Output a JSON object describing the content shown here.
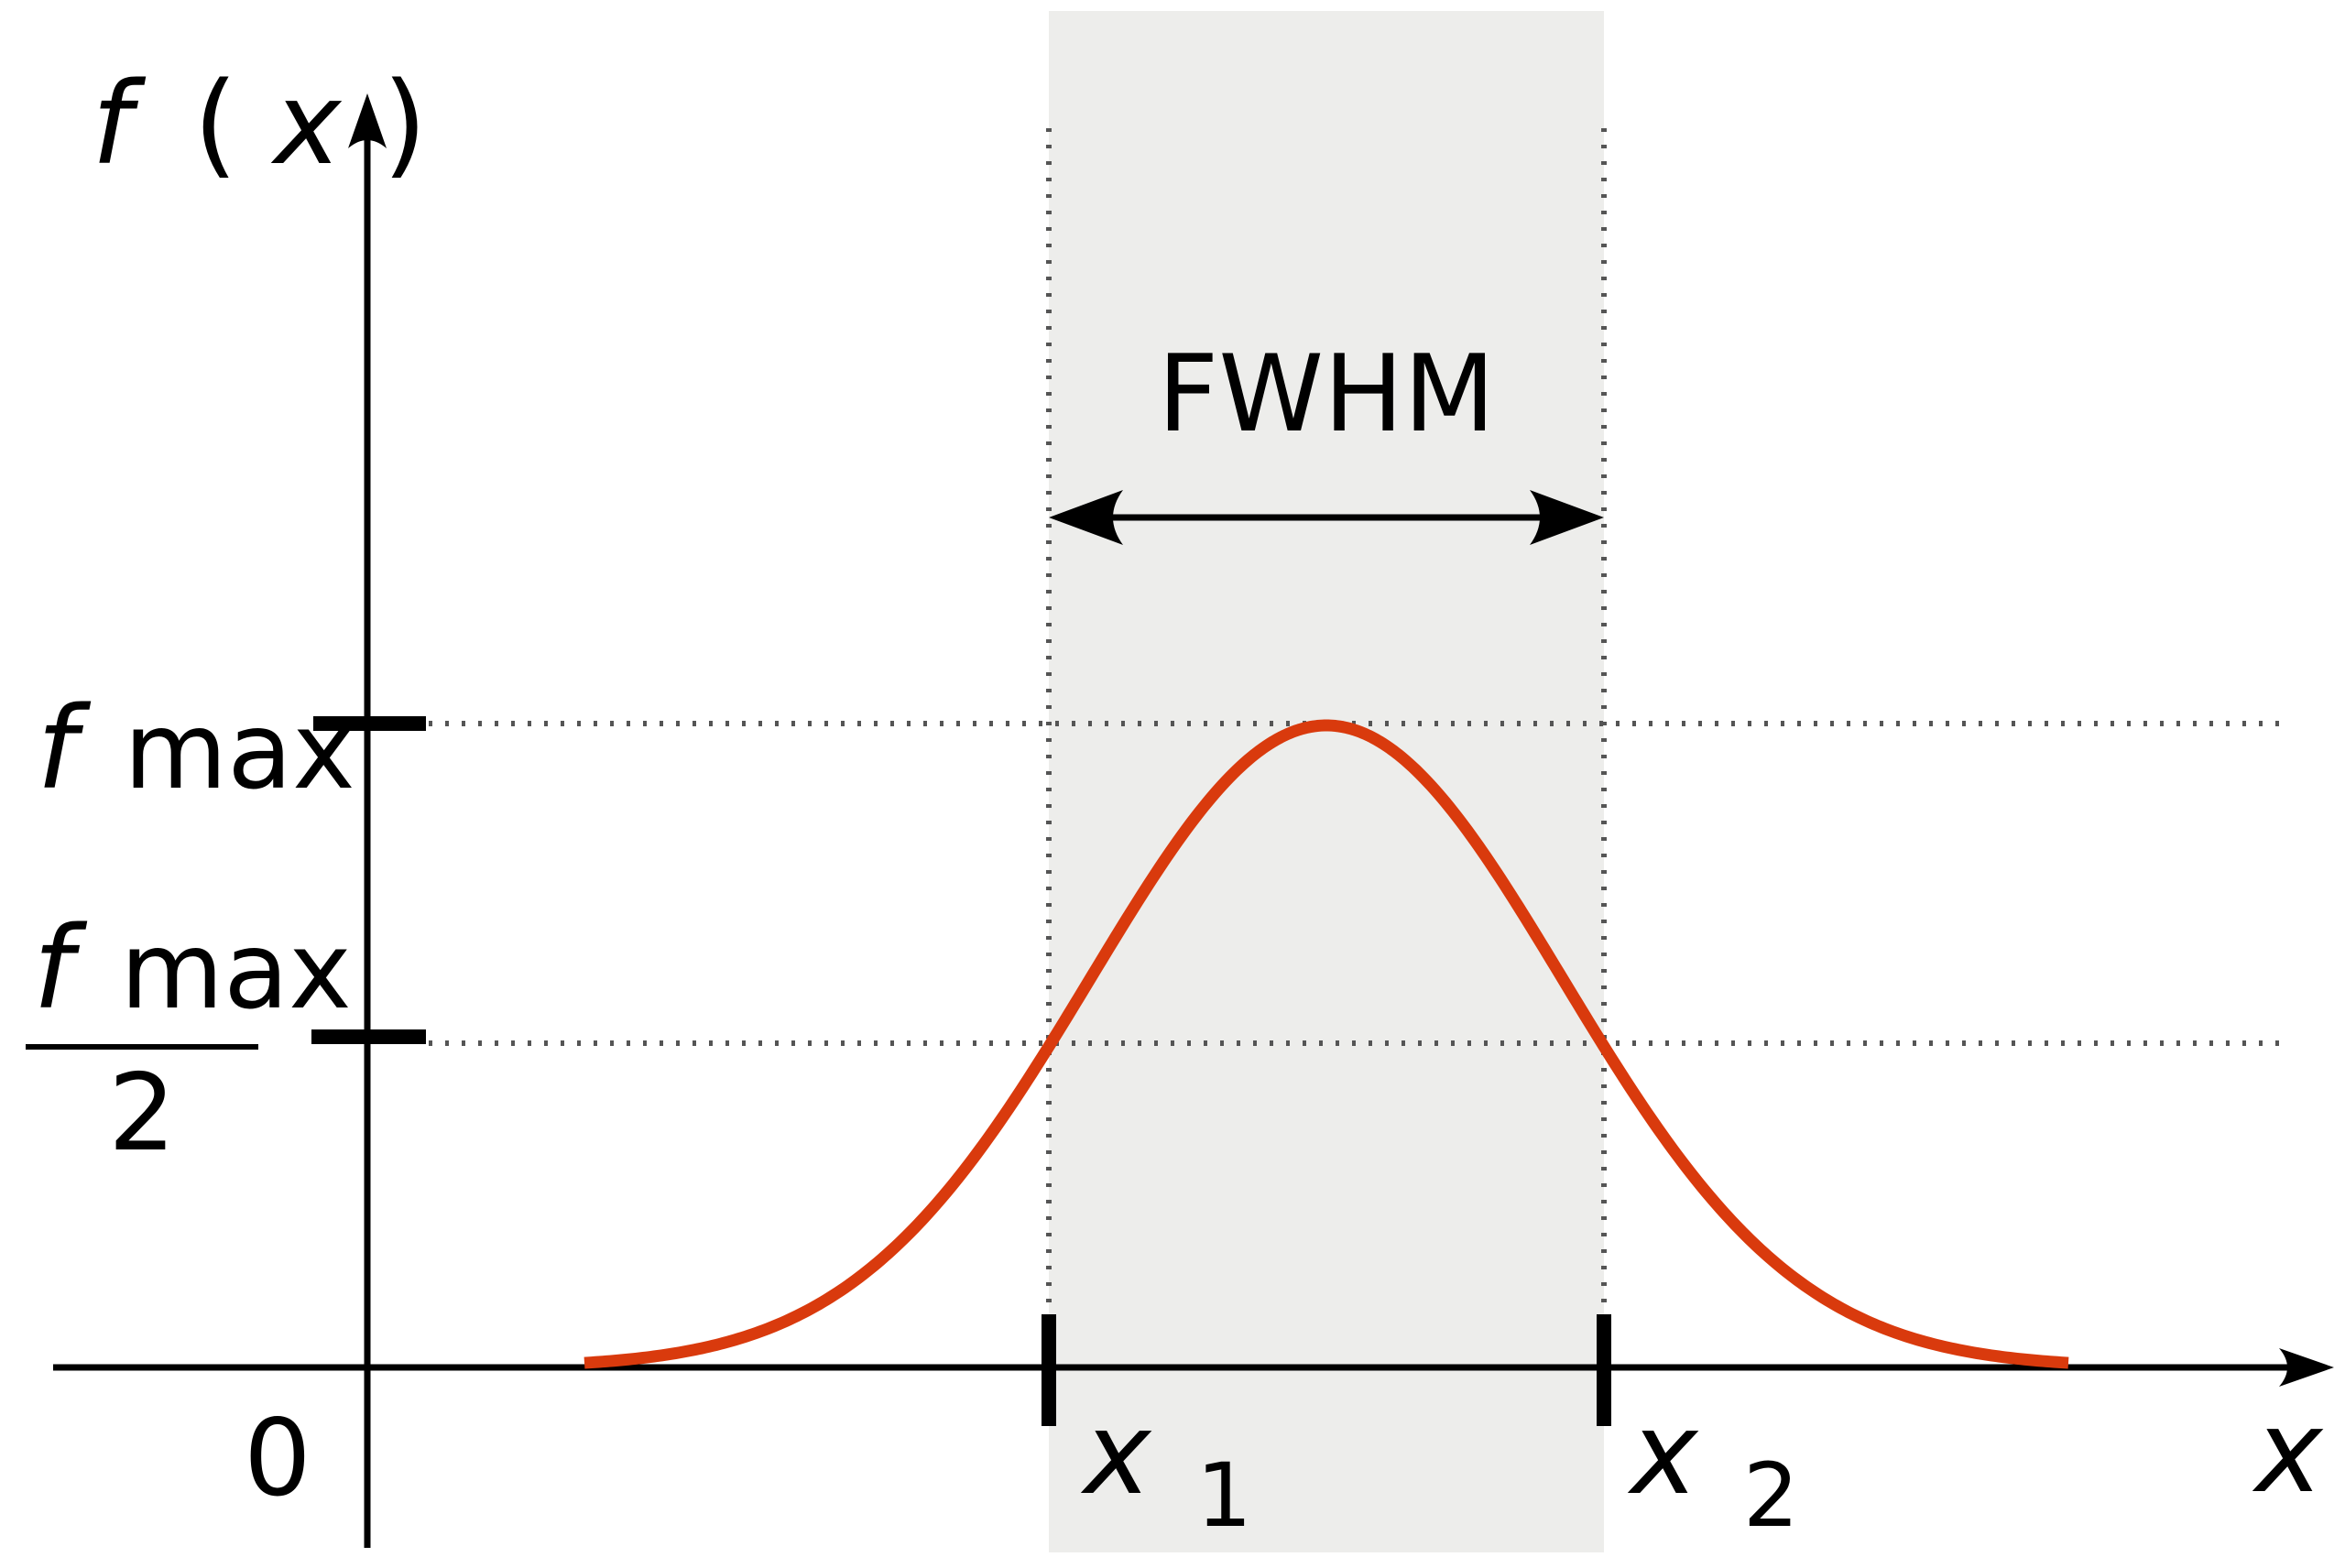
{
  "diagram": {
    "y_axis_label_f": "f",
    "y_axis_label_open": "(",
    "y_axis_label_x": "x",
    "y_axis_label_close": ")",
    "x_axis_label": "x",
    "origin_label": "0",
    "fmax_label_f": "f",
    "fmax_label_sub": "max",
    "half_label_f": "f",
    "half_label_sub": "max",
    "half_label_denominator": "2",
    "x1_label": "x",
    "x1_sub": "1",
    "x2_label": "x",
    "x2_sub": "2",
    "width_label": "FWHM"
  },
  "colors": {
    "curve": "#d93a0d",
    "band": "#ededeb",
    "axis": "#000000",
    "guide": "#555555"
  }
}
